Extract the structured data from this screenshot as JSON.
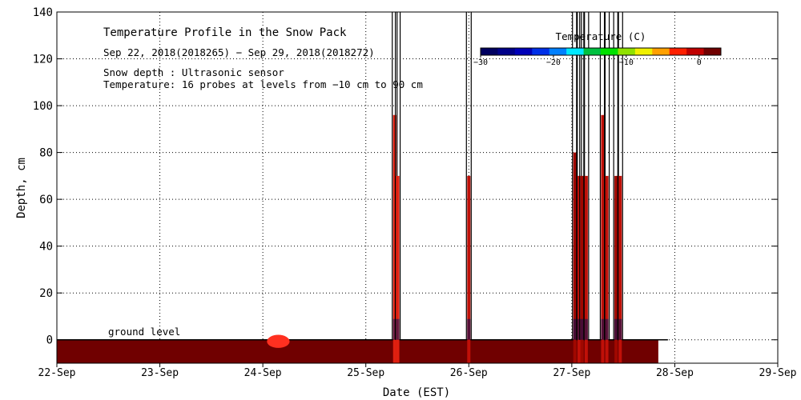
{
  "chart_data": {
    "type": "heatmap",
    "title": "Temperature Profile in the Snow Pack",
    "subtitle": "Sep 22, 2018(2018265) − Sep 29, 2018(2018272)",
    "notes": [
      "Snow depth : Ultrasonic sensor",
      "Temperature: 16 probes at levels from −10 cm to 90 cm"
    ],
    "xlabel": "Date (EST)",
    "ylabel": "Depth, cm",
    "xlim": [
      0,
      7
    ],
    "ylim": [
      -10,
      140
    ],
    "x_ticks": [
      {
        "v": 0,
        "label": "22-Sep"
      },
      {
        "v": 1,
        "label": "23-Sep"
      },
      {
        "v": 2,
        "label": "24-Sep"
      },
      {
        "v": 3,
        "label": "25-Sep"
      },
      {
        "v": 4,
        "label": "26-Sep"
      },
      {
        "v": 5,
        "label": "27-Sep"
      },
      {
        "v": 6,
        "label": "28-Sep"
      },
      {
        "v": 7,
        "label": "29-Sep"
      }
    ],
    "y_ticks": [
      {
        "v": 0,
        "label": "0"
      },
      {
        "v": 20,
        "label": "20"
      },
      {
        "v": 40,
        "label": "40"
      },
      {
        "v": 60,
        "label": "60"
      },
      {
        "v": 80,
        "label": "80"
      },
      {
        "v": 100,
        "label": "100"
      },
      {
        "v": 120,
        "label": "120"
      },
      {
        "v": 140,
        "label": "140"
      }
    ],
    "grid": true,
    "ground_label": "ground level",
    "colorbar": {
      "title": "Temperature (C)",
      "ticks": [
        {
          "v": -30,
          "label": "−30"
        },
        {
          "v": -20,
          "label": "−20"
        },
        {
          "v": -10,
          "label": "−10"
        },
        {
          "v": 0,
          "label": "0"
        }
      ],
      "range": [
        -30,
        3
      ],
      "colors": [
        "#000060",
        "#000088",
        "#0000b8",
        "#0030e8",
        "#0080ff",
        "#00e8ff",
        "#00c040",
        "#00e000",
        "#90e000",
        "#f0f000",
        "#ffa000",
        "#ff2000",
        "#c00000",
        "#700000"
      ]
    },
    "ground_layer": {
      "x_start": 0,
      "x_end": 5.84,
      "y_bottom": -10,
      "y_top": 0,
      "color": "#700000"
    },
    "warm_patch": {
      "x_start": 2.04,
      "x_end": 2.26,
      "y_bottom": -4,
      "y_top": 0,
      "color": "#ff3020"
    },
    "spikes": [
      {
        "x": 3.28,
        "y_top": 140,
        "fill_top": 96,
        "color": "#e02010"
      },
      {
        "x": 3.31,
        "y_top": 140,
        "fill_top": 70,
        "color": "#e02010"
      },
      {
        "x": 4.0,
        "y_top": 140,
        "fill_top": 70,
        "color": "#c01008"
      },
      {
        "x": 5.03,
        "y_top": 140,
        "fill_top": 80,
        "color": "#a00800"
      },
      {
        "x": 5.07,
        "y_top": 140,
        "fill_top": 70,
        "color": "#c01008"
      },
      {
        "x": 5.1,
        "y_top": 140,
        "fill_top": 70,
        "color": "#a00800"
      },
      {
        "x": 5.14,
        "y_top": 140,
        "fill_top": 70,
        "color": "#c01008"
      },
      {
        "x": 5.3,
        "y_top": 140,
        "fill_top": 96,
        "color": "#c01008"
      },
      {
        "x": 5.34,
        "y_top": 140,
        "fill_top": 70,
        "color": "#c01008"
      },
      {
        "x": 5.43,
        "y_top": 140,
        "fill_top": 70,
        "color": "#a00800"
      },
      {
        "x": 5.47,
        "y_top": 140,
        "fill_top": 70,
        "color": "#c01008"
      }
    ]
  }
}
